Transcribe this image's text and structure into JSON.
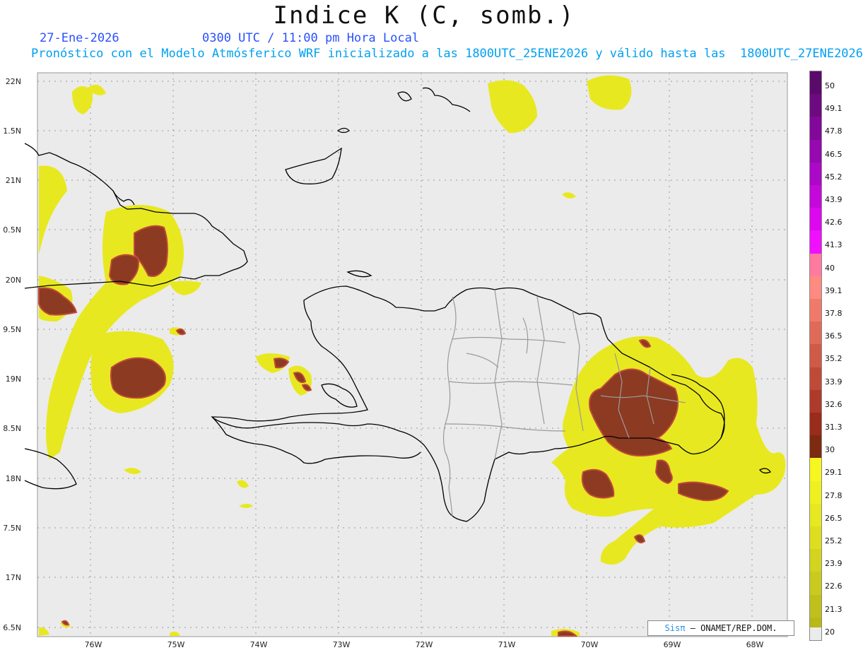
{
  "header": {
    "title": "Indice K (C, somb.)",
    "date": "27-Ene-2026",
    "time": "0300 UTC / 11:00 pm Hora Local",
    "forecast": "Pronóstico con el Modelo Atmósferico WRF inicializado a las 1800UTC_25ENE2026 y válido hasta las  1800UTC_27ENE2026"
  },
  "axes": {
    "lat_labels": [
      "22N",
      "1.5N",
      "21N",
      "0.5N",
      "20N",
      "9.5N",
      "19N",
      "8.5N",
      "18N",
      "7.5N",
      "17N",
      "6.5N"
    ],
    "lon_labels": [
      "76W",
      "75W",
      "74W",
      "73W",
      "72W",
      "71W",
      "70W",
      "69W",
      "68W"
    ]
  },
  "colorbar": {
    "labels": [
      "50",
      "49.1",
      "47.8",
      "46.5",
      "45.2",
      "43.9",
      "42.6",
      "41.3",
      "40",
      "39.1",
      "37.8",
      "36.5",
      "35.2",
      "33.9",
      "32.6",
      "31.3",
      "30",
      "29.1",
      "27.8",
      "26.5",
      "25.2",
      "23.9",
      "22.6",
      "21.3",
      "20"
    ],
    "colors": [
      "#5a0a6a",
      "#6e0a80",
      "#82089a",
      "#9608b0",
      "#ac08c8",
      "#c408dc",
      "#dc08ee",
      "#f010ff",
      "#ff7aa0",
      "#ff8a80",
      "#f07a6a",
      "#e06a58",
      "#d05a48",
      "#c04a38",
      "#ae3a2a",
      "#9a2c1c",
      "#7e2a10",
      "#f6f620",
      "#eef022",
      "#e6e820",
      "#dede20",
      "#d4d420",
      "#caca1e",
      "#c0c01c",
      "#b8b818"
    ]
  },
  "credit": {
    "sis": "Sisπ",
    "rest": " – ONAMET/REP.DOM."
  }
}
